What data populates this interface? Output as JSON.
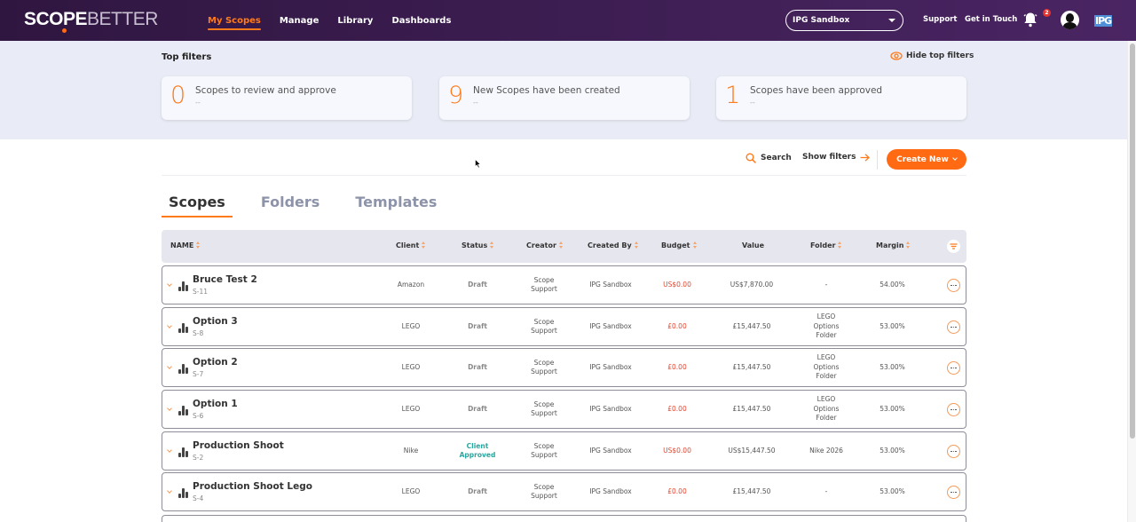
{
  "nav": {
    "logo_part1": "SCOPE",
    "logo_part2": "BETTER",
    "items": [
      {
        "label": "My Scopes",
        "active": true
      },
      {
        "label": "Manage",
        "active": false
      },
      {
        "label": "Library",
        "active": false
      },
      {
        "label": "Dashboards",
        "active": false
      }
    ],
    "org_select": "IPG Sandbox",
    "support": "Support",
    "get_in_touch": "Get in Touch",
    "notification_count": "2",
    "brand_logo": "IPG"
  },
  "top_filters": {
    "title": "Top filters",
    "hide_label": "Hide top filters",
    "cards": [
      {
        "count": "0",
        "label": "Scopes to review and approve",
        "sub": "--"
      },
      {
        "count": "9",
        "label": "New Scopes have been created",
        "sub": "--"
      },
      {
        "count": "1",
        "label": "Scopes have been approved",
        "sub": "--"
      }
    ]
  },
  "actions": {
    "search": "Search",
    "show_filters": "Show filters",
    "create_new": "Create New"
  },
  "tabs": [
    {
      "label": "Scopes",
      "active": true
    },
    {
      "label": "Folders",
      "active": false
    },
    {
      "label": "Templates",
      "active": false
    }
  ],
  "table": {
    "columns": [
      "NAME",
      "Client",
      "Status",
      "Creator",
      "Created By",
      "Budget",
      "Value",
      "Folder",
      "Margin"
    ],
    "rows": [
      {
        "name": "Bruce Test 2",
        "code": "S-11",
        "client": "Amazon",
        "status": "Draft",
        "creator": "Scope Support",
        "created_by": "IPG Sandbox",
        "budget": "US$0.00",
        "value": "US$7,870.00",
        "folder": "-",
        "margin": "54.00%"
      },
      {
        "name": "Option 3",
        "code": "S-8",
        "client": "LEGO",
        "status": "Draft",
        "creator": "Scope Support",
        "created_by": "IPG Sandbox",
        "budget": "£0.00",
        "value": "£15,447.50",
        "folder": "LEGO Options Folder",
        "margin": "53.00%"
      },
      {
        "name": "Option 2",
        "code": "S-7",
        "client": "LEGO",
        "status": "Draft",
        "creator": "Scope Support",
        "created_by": "IPG Sandbox",
        "budget": "£0.00",
        "value": "£15,447.50",
        "folder": "LEGO Options Folder",
        "margin": "53.00%"
      },
      {
        "name": "Option 1",
        "code": "S-6",
        "client": "LEGO",
        "status": "Draft",
        "creator": "Scope Support",
        "created_by": "IPG Sandbox",
        "budget": "£0.00",
        "value": "£15,447.50",
        "folder": "LEGO Options Folder",
        "margin": "53.00%"
      },
      {
        "name": "Production Shoot",
        "code": "S-2",
        "client": "Nike",
        "status": "Client Approved",
        "creator": "Scope Support",
        "created_by": "IPG Sandbox",
        "budget": "US$0.00",
        "value": "US$15,447.50",
        "folder": "Nike 2026",
        "margin": "53.00%"
      },
      {
        "name": "Production Shoot Lego",
        "code": "S-4",
        "client": "LEGO",
        "status": "Draft",
        "creator": "Scope Support",
        "created_by": "IPG Sandbox",
        "budget": "£0.00",
        "value": "£15,447.50",
        "folder": "-",
        "margin": "53.00%"
      }
    ]
  },
  "colors": {
    "accent": "#ff6a13",
    "nav_bg": "#3f1f55",
    "approved": "#2aa7a0",
    "budget": "#e2452f"
  }
}
